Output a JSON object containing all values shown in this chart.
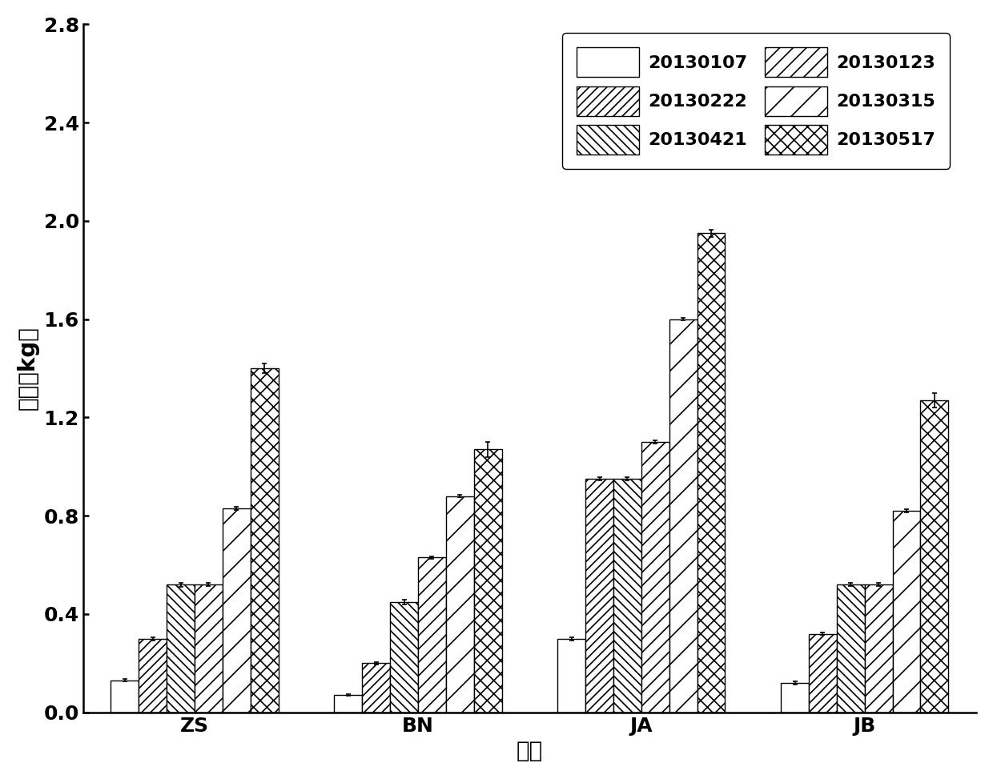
{
  "categories": [
    "ZS",
    "BN",
    "JA",
    "JB"
  ],
  "legend_labels": [
    "20130107",
    "20130222",
    "20130421",
    "20130123",
    "20130315",
    "20130517"
  ],
  "bar_values": [
    [
      0.13,
      0.07,
      0.3,
      0.12
    ],
    [
      0.3,
      0.2,
      0.95,
      0.32
    ],
    [
      0.52,
      0.45,
      0.95,
      0.52
    ],
    [
      0.52,
      0.63,
      1.1,
      0.52
    ],
    [
      0.83,
      0.88,
      1.6,
      0.82
    ],
    [
      1.4,
      1.07,
      1.95,
      1.27
    ]
  ],
  "bar_errors": [
    [
      0.005,
      0.004,
      0.006,
      0.006
    ],
    [
      0.006,
      0.006,
      0.006,
      0.006
    ],
    [
      0.008,
      0.01,
      0.006,
      0.006
    ],
    [
      0.006,
      0.006,
      0.006,
      0.006
    ],
    [
      0.006,
      0.006,
      0.006,
      0.006
    ],
    [
      0.02,
      0.03,
      0.015,
      0.03
    ]
  ],
  "hatch_patterns": [
    "",
    "///",
    "\\\\\\",
    "//",
    "/",
    "xx"
  ],
  "ylabel": "鲜重（kg）",
  "xlabel": "品系",
  "ylim": [
    0.0,
    2.8
  ],
  "yticks": [
    0.0,
    0.4,
    0.8,
    1.2,
    1.6,
    2.0,
    2.4,
    2.8
  ],
  "background_color": "#ffffff",
  "label_fontsize": 20,
  "tick_fontsize": 18,
  "legend_fontsize": 16,
  "group_width": 0.75
}
